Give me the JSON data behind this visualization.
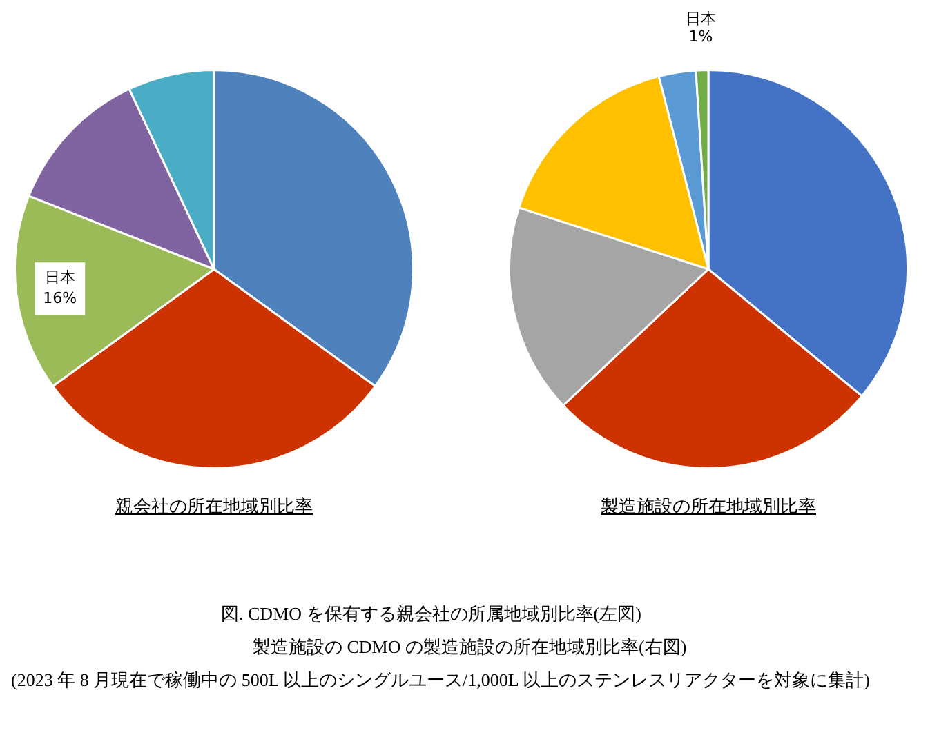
{
  "chart_data": [
    {
      "type": "pie",
      "title": "親会社の所在地域別比率",
      "categories": [
        null,
        null,
        "日本",
        null,
        null
      ],
      "values": [
        35,
        30,
        16,
        12,
        7
      ],
      "value_labels": [
        null,
        null,
        "16%",
        null,
        null
      ],
      "colors": [
        "#4f81bd",
        "#cc3300",
        "#9bbb59",
        "#8064a2",
        "#4bacc6"
      ],
      "legend": false,
      "annotations": [
        "図. CDMO を保有する親会社の所属地域別比率(左図)",
        "製造施設の CDMO の製造施設の所在地域別比率(右図)",
        "(2023 年 8 月現在で稼働中の 500L 以上のシングルユース/1,000L 以上のステンレスリアクターを対象に集計)"
      ]
    },
    {
      "type": "pie",
      "title": "製造施設の所在地域別比率",
      "categories": [
        null,
        null,
        null,
        null,
        null,
        "日本"
      ],
      "values": [
        36,
        27,
        17,
        16,
        3,
        1
      ],
      "value_labels": [
        null,
        null,
        null,
        null,
        null,
        "1%"
      ],
      "colors": [
        "#4472c4",
        "#cc3300",
        "#a5a5a5",
        "#ffc000",
        "#5b9bd5",
        "#70ad47"
      ],
      "legend": false
    }
  ]
}
